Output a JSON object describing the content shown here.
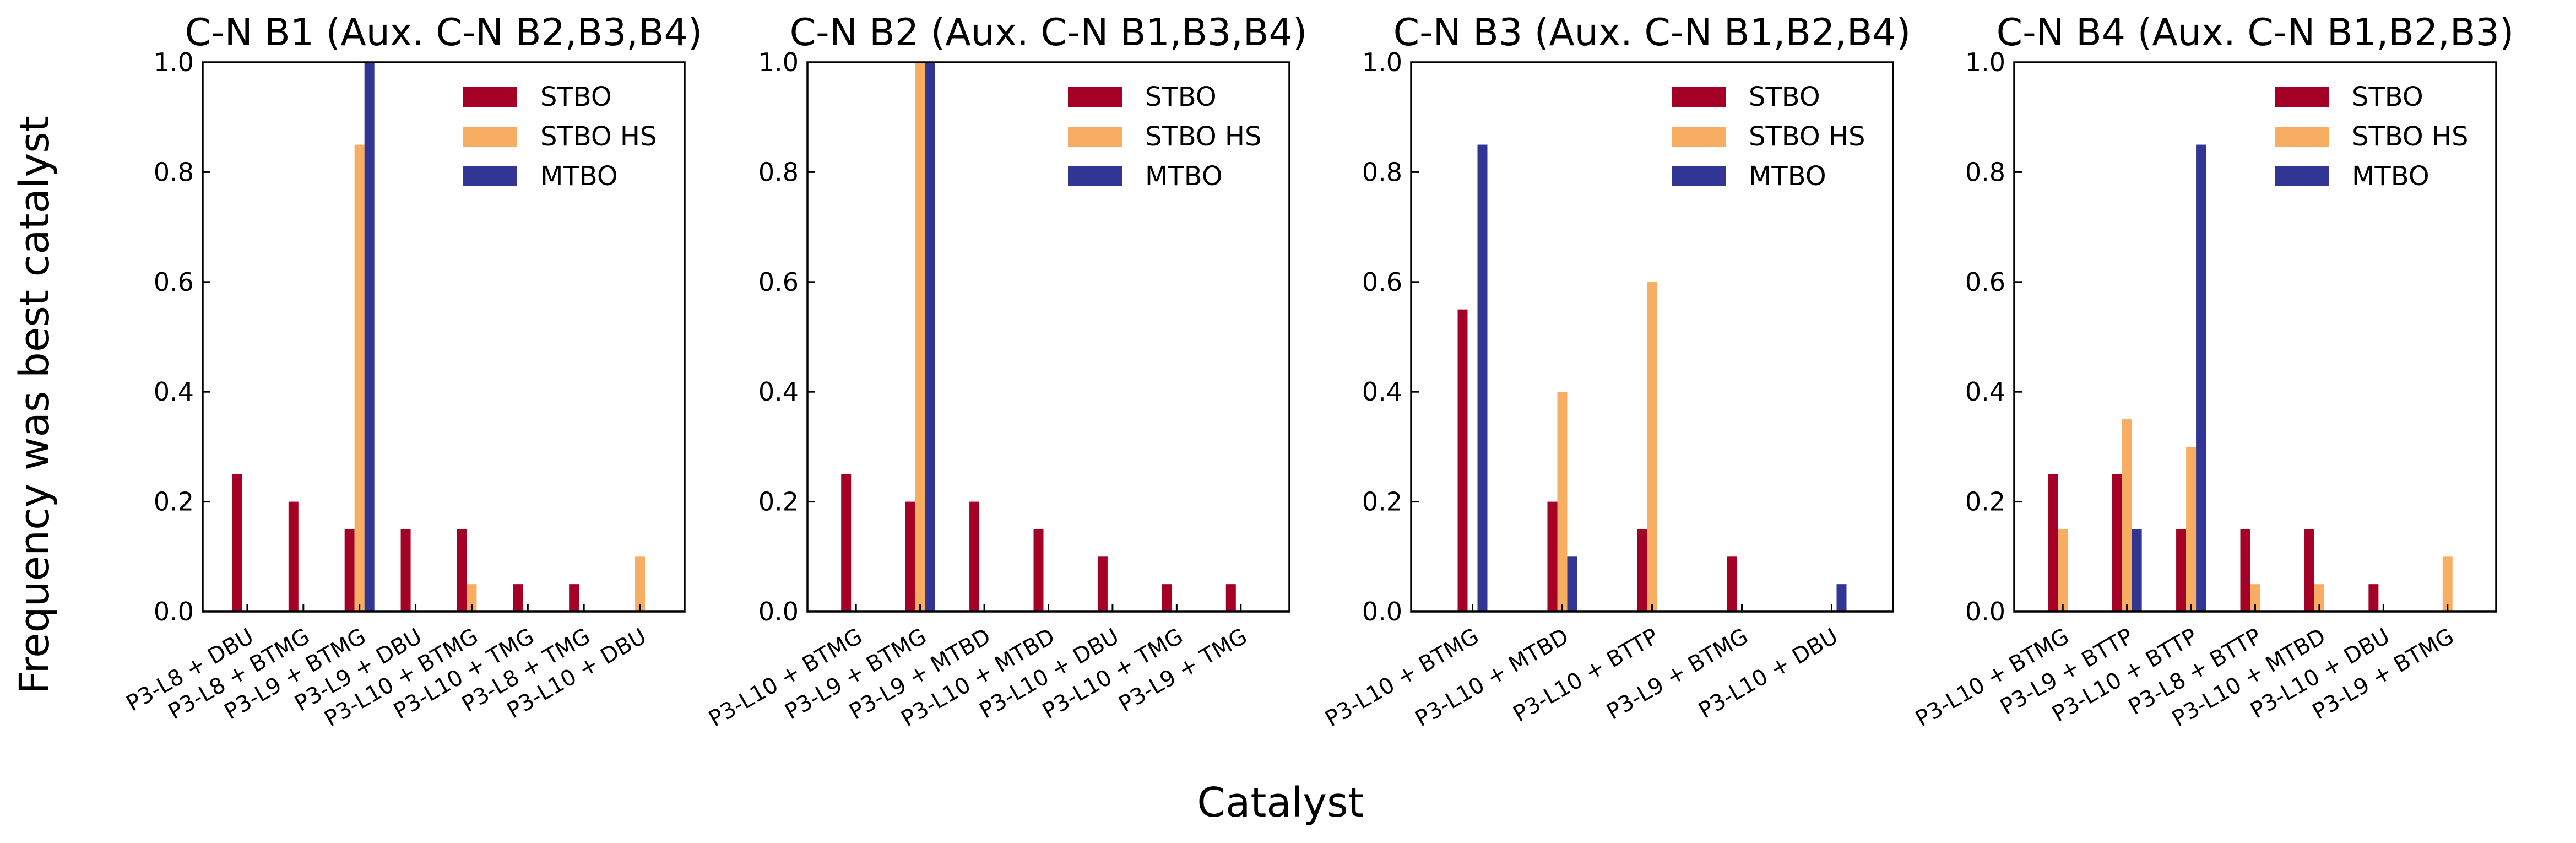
{
  "figure": {
    "ylabel": "Frequency was best catalyst",
    "xlabel": "Catalyst"
  },
  "colors": {
    "STBO": "#a50026",
    "STBO HS": "#f8ae62",
    "MTBO": "#313695"
  },
  "chart_data": [
    {
      "type": "bar",
      "title": "C-N B1 (Aux. C-N B2,B3,B4)",
      "categories": [
        "P3-L8 + DBU",
        "P3-L8 + BTMG",
        "P3-L9 + BTMG",
        "P3-L9 + DBU",
        "P3-L10 + BTMG",
        "P3-L10 + TMG",
        "P3-L8 + TMG",
        "P3-L10 + DBU"
      ],
      "series": [
        {
          "name": "STBO",
          "values": [
            0.25,
            0.2,
            0.15,
            0.15,
            0.15,
            0.05,
            0.05,
            0.0
          ]
        },
        {
          "name": "STBO HS",
          "values": [
            0.0,
            0.0,
            0.85,
            0.0,
            0.05,
            0.0,
            0.0,
            0.1
          ]
        },
        {
          "name": "MTBO",
          "values": [
            0.0,
            0.0,
            1.0,
            0.0,
            0.0,
            0.0,
            0.0,
            0.0
          ]
        }
      ],
      "ylim": [
        0,
        1.0
      ],
      "yticks": [
        "0.0",
        "0.2",
        "0.4",
        "0.6",
        "0.8",
        "1.0"
      ],
      "legend": "top-right"
    },
    {
      "type": "bar",
      "title": "C-N B2 (Aux. C-N B1,B3,B4)",
      "categories": [
        "P3-L10 + BTMG",
        "P3-L9 + BTMG",
        "P3-L9 + MTBD",
        "P3-L10 + MTBD",
        "P3-L10 + DBU",
        "P3-L10 + TMG",
        "P3-L9 + TMG"
      ],
      "series": [
        {
          "name": "STBO",
          "values": [
            0.25,
            0.2,
            0.2,
            0.15,
            0.1,
            0.05,
            0.05
          ]
        },
        {
          "name": "STBO HS",
          "values": [
            0.0,
            1.0,
            0.0,
            0.0,
            0.0,
            0.0,
            0.0
          ]
        },
        {
          "name": "MTBO",
          "values": [
            0.0,
            1.0,
            0.0,
            0.0,
            0.0,
            0.0,
            0.0
          ]
        }
      ],
      "ylim": [
        0,
        1.0
      ],
      "yticks": [
        "0.0",
        "0.2",
        "0.4",
        "0.6",
        "0.8",
        "1.0"
      ],
      "legend": "top-right"
    },
    {
      "type": "bar",
      "title": "C-N B3 (Aux. C-N B1,B2,B4)",
      "categories": [
        "P3-L10 + BTMG",
        "P3-L10 + MTBD",
        "P3-L10 + BTTP",
        "P3-L9 + BTMG",
        "P3-L10 + DBU"
      ],
      "series": [
        {
          "name": "STBO",
          "values": [
            0.55,
            0.2,
            0.15,
            0.1,
            0.0
          ]
        },
        {
          "name": "STBO HS",
          "values": [
            0.0,
            0.4,
            0.6,
            0.0,
            0.0
          ]
        },
        {
          "name": "MTBO",
          "values": [
            0.85,
            0.1,
            0.0,
            0.0,
            0.05
          ]
        }
      ],
      "ylim": [
        0,
        1.0
      ],
      "yticks": [
        "0.0",
        "0.2",
        "0.4",
        "0.6",
        "0.8",
        "1.0"
      ],
      "legend": "top-right"
    },
    {
      "type": "bar",
      "title": "C-N B4 (Aux. C-N B1,B2,B3)",
      "categories": [
        "P3-L10 + BTMG",
        "P3-L9 + BTTP",
        "P3-L10 + BTTP",
        "P3-L8 + BTTP",
        "P3-L10 + MTBD",
        "P3-L10 + DBU",
        "P3-L9 + BTMG"
      ],
      "series": [
        {
          "name": "STBO",
          "values": [
            0.25,
            0.25,
            0.15,
            0.15,
            0.15,
            0.05,
            0.0
          ]
        },
        {
          "name": "STBO HS",
          "values": [
            0.15,
            0.35,
            0.3,
            0.05,
            0.05,
            0.0,
            0.1
          ]
        },
        {
          "name": "MTBO",
          "values": [
            0.0,
            0.15,
            0.85,
            0.0,
            0.0,
            0.0,
            0.0
          ]
        }
      ],
      "ylim": [
        0,
        1.0
      ],
      "yticks": [
        "0.0",
        "0.2",
        "0.4",
        "0.6",
        "0.8",
        "1.0"
      ],
      "legend": "top-right"
    }
  ]
}
